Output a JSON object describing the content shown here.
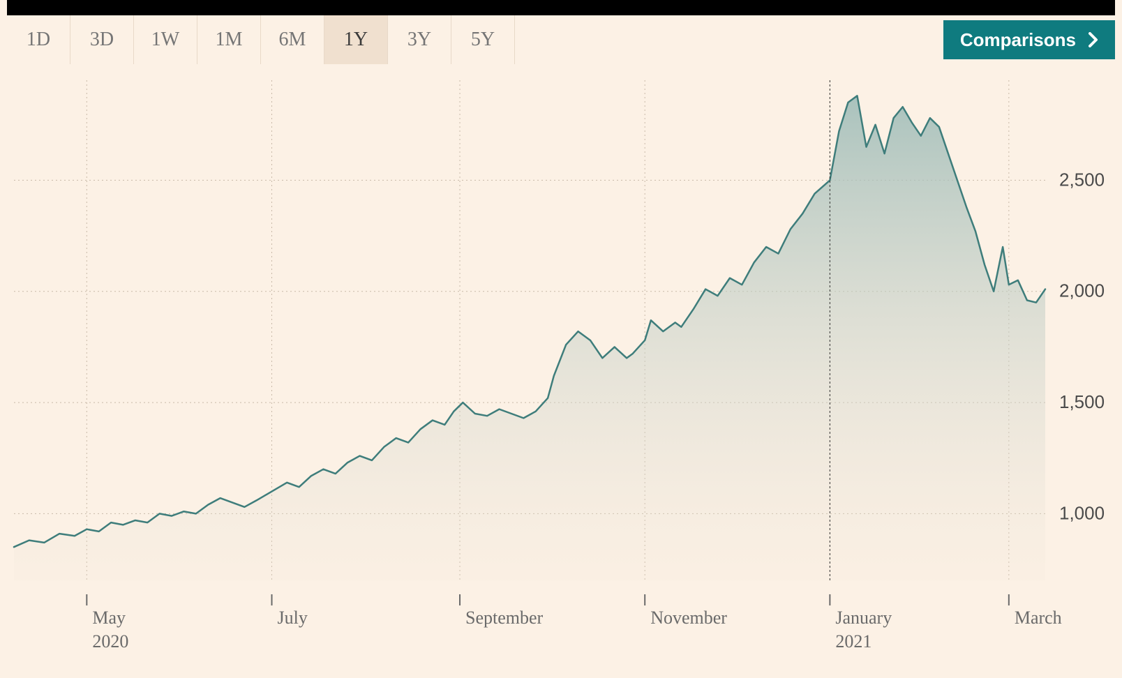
{
  "tabs": {
    "items": [
      "1D",
      "3D",
      "1W",
      "1M",
      "6M",
      "1Y",
      "3Y",
      "5Y"
    ],
    "active_index": 5
  },
  "comparisons": {
    "label": "Comparisons"
  },
  "chart": {
    "type": "area",
    "background_color": "#fcf1e5",
    "grid_color": "#c8b9a8",
    "line_color": "#3e7d7b",
    "area_gradient_top": "#9bbab6",
    "area_gradient_bottom": "#f0e6d9",
    "divider_color": "#333333",
    "axis_label_color": "#4a4a4a",
    "xlabel_color": "#6a6a6a",
    "yaxis": {
      "min": 700,
      "max": 2950,
      "ticks": [
        1000,
        1500,
        2000,
        2500
      ],
      "labels": [
        "1,000",
        "1,500",
        "2,000",
        "2,500"
      ],
      "fontsize": 26
    },
    "xaxis": {
      "domain_min": 0,
      "domain_max": 340,
      "ticks": [
        {
          "day": 24,
          "label": "May",
          "year": "2020"
        },
        {
          "day": 85,
          "label": "July",
          "year": ""
        },
        {
          "day": 147,
          "label": "September",
          "year": ""
        },
        {
          "day": 208,
          "label": "November",
          "year": ""
        },
        {
          "day": 269,
          "label": "January",
          "year": "2021"
        },
        {
          "day": 328,
          "label": "March",
          "year": ""
        }
      ],
      "fontsize": 26
    },
    "divider_day": 269,
    "series": [
      {
        "x": 0,
        "y": 850
      },
      {
        "x": 5,
        "y": 880
      },
      {
        "x": 10,
        "y": 870
      },
      {
        "x": 15,
        "y": 910
      },
      {
        "x": 20,
        "y": 900
      },
      {
        "x": 24,
        "y": 930
      },
      {
        "x": 28,
        "y": 920
      },
      {
        "x": 32,
        "y": 960
      },
      {
        "x": 36,
        "y": 950
      },
      {
        "x": 40,
        "y": 970
      },
      {
        "x": 44,
        "y": 960
      },
      {
        "x": 48,
        "y": 1000
      },
      {
        "x": 52,
        "y": 990
      },
      {
        "x": 56,
        "y": 1010
      },
      {
        "x": 60,
        "y": 1000
      },
      {
        "x": 64,
        "y": 1040
      },
      {
        "x": 68,
        "y": 1070
      },
      {
        "x": 72,
        "y": 1050
      },
      {
        "x": 76,
        "y": 1030
      },
      {
        "x": 80,
        "y": 1060
      },
      {
        "x": 85,
        "y": 1100
      },
      {
        "x": 90,
        "y": 1140
      },
      {
        "x": 94,
        "y": 1120
      },
      {
        "x": 98,
        "y": 1170
      },
      {
        "x": 102,
        "y": 1200
      },
      {
        "x": 106,
        "y": 1180
      },
      {
        "x": 110,
        "y": 1230
      },
      {
        "x": 114,
        "y": 1260
      },
      {
        "x": 118,
        "y": 1240
      },
      {
        "x": 122,
        "y": 1300
      },
      {
        "x": 126,
        "y": 1340
      },
      {
        "x": 130,
        "y": 1320
      },
      {
        "x": 134,
        "y": 1380
      },
      {
        "x": 138,
        "y": 1420
      },
      {
        "x": 142,
        "y": 1400
      },
      {
        "x": 145,
        "y": 1460
      },
      {
        "x": 148,
        "y": 1500
      },
      {
        "x": 152,
        "y": 1450
      },
      {
        "x": 156,
        "y": 1440
      },
      {
        "x": 160,
        "y": 1470
      },
      {
        "x": 164,
        "y": 1450
      },
      {
        "x": 168,
        "y": 1430
      },
      {
        "x": 172,
        "y": 1460
      },
      {
        "x": 176,
        "y": 1520
      },
      {
        "x": 178,
        "y": 1620
      },
      {
        "x": 182,
        "y": 1760
      },
      {
        "x": 186,
        "y": 1820
      },
      {
        "x": 190,
        "y": 1780
      },
      {
        "x": 194,
        "y": 1700
      },
      {
        "x": 198,
        "y": 1750
      },
      {
        "x": 202,
        "y": 1700
      },
      {
        "x": 204,
        "y": 1720
      },
      {
        "x": 208,
        "y": 1780
      },
      {
        "x": 210,
        "y": 1870
      },
      {
        "x": 214,
        "y": 1820
      },
      {
        "x": 218,
        "y": 1860
      },
      {
        "x": 220,
        "y": 1840
      },
      {
        "x": 224,
        "y": 1920
      },
      {
        "x": 228,
        "y": 2010
      },
      {
        "x": 232,
        "y": 1980
      },
      {
        "x": 236,
        "y": 2060
      },
      {
        "x": 240,
        "y": 2030
      },
      {
        "x": 244,
        "y": 2130
      },
      {
        "x": 248,
        "y": 2200
      },
      {
        "x": 252,
        "y": 2170
      },
      {
        "x": 256,
        "y": 2280
      },
      {
        "x": 260,
        "y": 2350
      },
      {
        "x": 264,
        "y": 2440
      },
      {
        "x": 269,
        "y": 2500
      },
      {
        "x": 272,
        "y": 2720
      },
      {
        "x": 275,
        "y": 2850
      },
      {
        "x": 278,
        "y": 2880
      },
      {
        "x": 281,
        "y": 2650
      },
      {
        "x": 284,
        "y": 2750
      },
      {
        "x": 287,
        "y": 2620
      },
      {
        "x": 290,
        "y": 2780
      },
      {
        "x": 293,
        "y": 2830
      },
      {
        "x": 296,
        "y": 2760
      },
      {
        "x": 299,
        "y": 2700
      },
      {
        "x": 302,
        "y": 2780
      },
      {
        "x": 305,
        "y": 2740
      },
      {
        "x": 308,
        "y": 2620
      },
      {
        "x": 311,
        "y": 2500
      },
      {
        "x": 314,
        "y": 2380
      },
      {
        "x": 317,
        "y": 2270
      },
      {
        "x": 320,
        "y": 2120
      },
      {
        "x": 323,
        "y": 2000
      },
      {
        "x": 326,
        "y": 2200
      },
      {
        "x": 328,
        "y": 2030
      },
      {
        "x": 331,
        "y": 2050
      },
      {
        "x": 334,
        "y": 1960
      },
      {
        "x": 337,
        "y": 1950
      },
      {
        "x": 340,
        "y": 2010
      }
    ]
  }
}
